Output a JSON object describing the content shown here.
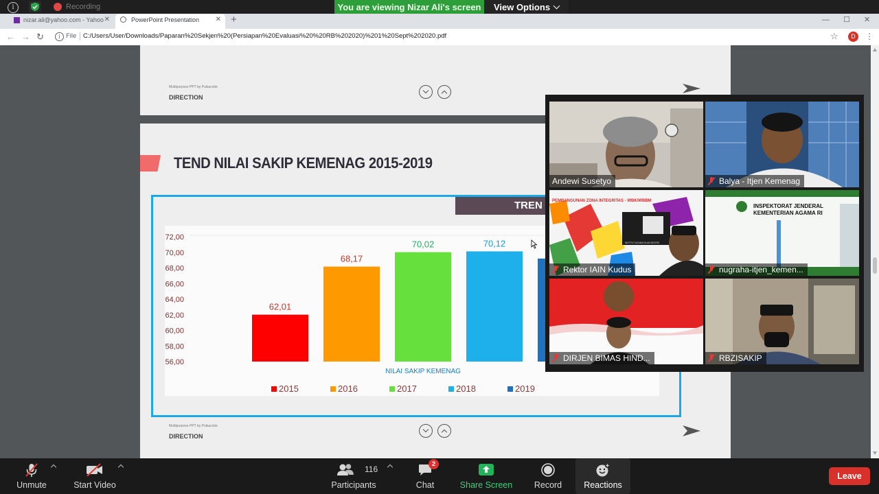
{
  "zoom": {
    "recording_label": "Recording",
    "viewing_banner": "You are viewing Nizar Ali's screen",
    "view_options_label": "View Options"
  },
  "browser": {
    "tabs": [
      {
        "label": "nizar.ali@yahoo.com - Yahoo",
        "active": false
      },
      {
        "label": "PowerPoint Presentation",
        "active": true
      }
    ],
    "new_tab_symbol": "+",
    "file_label": "File",
    "url": "C:/Users/User/Downloads/Paparan%20Sekjen%20(Persiapan%20Evaluasi%20%20RB%202020)%201%20Sept%202020.pdf",
    "profile_initial": "D"
  },
  "slides": {
    "footer_small": "Multipurpose PPT by Pulsacolor",
    "footer_label": "DIRECTION",
    "title": "TEND NILAI SAKIP KEMENAG 2015-2019",
    "banner": "TREN"
  },
  "chart_data": {
    "type": "bar",
    "categories": [
      "2015",
      "2016",
      "2017",
      "2018",
      "2019"
    ],
    "values": [
      62.01,
      68.17,
      70.02,
      70.12,
      null
    ],
    "value_labels": [
      "62,01",
      "68,17",
      "70,02",
      "70,12",
      ""
    ],
    "colors": [
      "#ff0000",
      "#ff9900",
      "#66e03c",
      "#1db0ea",
      "#1f72c0"
    ],
    "label_colors": [
      "#c0392b",
      "#c0392b",
      "#27ae60",
      "#1a9dd6",
      "#1f72c0"
    ],
    "ylim": [
      56,
      72
    ],
    "yticks": [
      "72,00",
      "70,00",
      "68,00",
      "66,00",
      "64,00",
      "62,00",
      "60,00",
      "58,00",
      "56,00"
    ],
    "ytick_values": [
      72,
      70,
      68,
      66,
      64,
      62,
      60,
      58,
      56
    ],
    "xlabel": "NILAI SAKIP KEMENAG",
    "legend": [
      "2015",
      "2016",
      "2017",
      "2018",
      "2019"
    ],
    "legend_position": "bottom",
    "grid": false
  },
  "participants_tiles": [
    {
      "name": "Andewi Susetyo",
      "muted": false
    },
    {
      "name": "Balya - Itjen Kemenag",
      "muted": true
    },
    {
      "name": "Rektor IAIN Kudus",
      "muted": true,
      "slide_text": "PEMBANGUNAN ZONA INTEGRITAS - WBK/WBBM",
      "plaque_text": "INSTITUT AGAMA ISLAM NEGERI"
    },
    {
      "name": "nugraha-itjen_kemen...",
      "muted": true,
      "banner_line1": "INSPEKTORAT JENDERAL",
      "banner_line2": "KEMENTERIAN AGAMA RI"
    },
    {
      "name": "DIRJEN BIMAS HIND...",
      "muted": true
    },
    {
      "name": "RBZISAKIP",
      "muted": true
    }
  ],
  "toolbar": {
    "unmute": "Unmute",
    "start_video": "Start Video",
    "participants": "Participants",
    "participants_count": "116",
    "chat": "Chat",
    "chat_badge": "2",
    "share_screen": "Share Screen",
    "record": "Record",
    "reactions": "Reactions",
    "leave": "Leave"
  },
  "colors": {
    "share_green": "#2e9e3a",
    "leave_red": "#d8312c",
    "frame_blue": "#1aa8e8"
  }
}
